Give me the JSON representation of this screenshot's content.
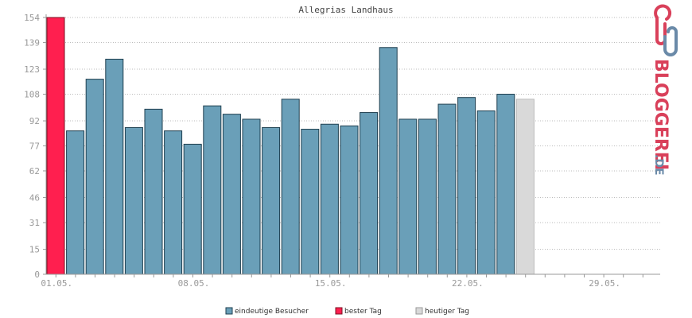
{
  "chart_data": {
    "type": "bar",
    "title": "Allegrias Landhaus",
    "xlabel": "",
    "ylabel": "",
    "ylim": [
      0,
      154
    ],
    "yticks": [
      0,
      15,
      31,
      46,
      62,
      77,
      92,
      108,
      123,
      139,
      154
    ],
    "xtick_labels": [
      "01.05.",
      "08.05.",
      "15.05.",
      "22.05.",
      "29.05."
    ],
    "grid": true,
    "legend_position": "bottom",
    "days": 31,
    "series": [
      {
        "name": "eindeutige Besucher",
        "color": "#6a9fb8",
        "values": [
          null,
          86,
          117,
          129,
          88,
          99,
          86,
          78,
          101,
          96,
          93,
          88,
          105,
          87,
          90,
          89,
          97,
          136,
          93,
          93,
          102,
          106,
          98,
          108,
          null
        ]
      },
      {
        "name": "bester Tag",
        "color": "#ff1f4f",
        "values": [
          154
        ]
      },
      {
        "name": "heutiger Tag",
        "color": "#d9d9d9",
        "values": [
          null,
          null,
          null,
          null,
          null,
          null,
          null,
          null,
          null,
          null,
          null,
          null,
          null,
          null,
          null,
          null,
          null,
          null,
          null,
          null,
          null,
          null,
          null,
          null,
          105
        ]
      }
    ]
  },
  "logo": {
    "text": "BLOGGEREI",
    "suffix": ".DE",
    "icon": "bloggerei-chain-logo-icon"
  }
}
